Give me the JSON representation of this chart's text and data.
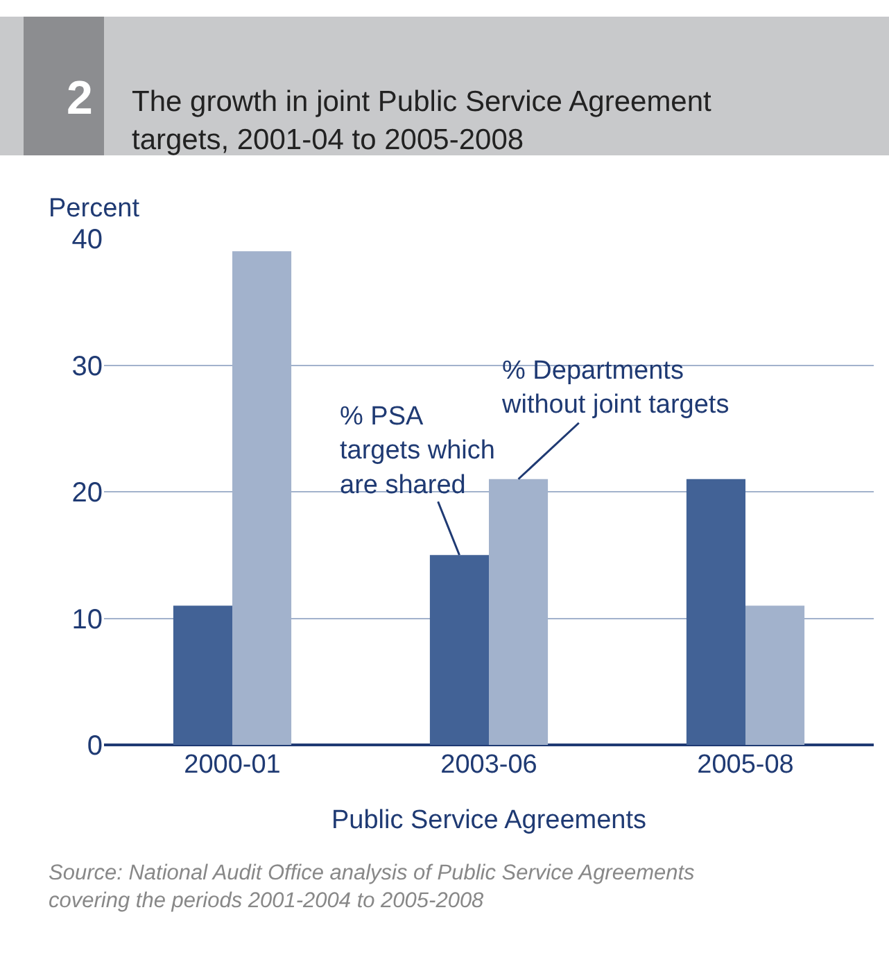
{
  "chart_data": {
    "type": "bar",
    "title": "The growth in joint Public Service Agreement targets, 2001-04 to 2005-2008",
    "categories": [
      "2000-01",
      "2003-06",
      "2005-08"
    ],
    "series": [
      {
        "name": "% PSA targets which are shared",
        "color": "#426296",
        "values": [
          11,
          15,
          21
        ]
      },
      {
        "name": "% Departments without joint targets",
        "color": "#a2b2cc",
        "values": [
          39,
          21,
          11
        ]
      }
    ],
    "ylabel": "Percent",
    "xlabel": "Public Service Agreements",
    "ylim": [
      0,
      40
    ],
    "yticks": [
      0,
      10,
      20,
      30,
      40
    ],
    "grid": "y",
    "legend": false,
    "annotations": [
      "2",
      "Source: National Audit Office analysis of Public Service Agreements covering the periods 2001-2004 to 2005-2008"
    ]
  }
}
